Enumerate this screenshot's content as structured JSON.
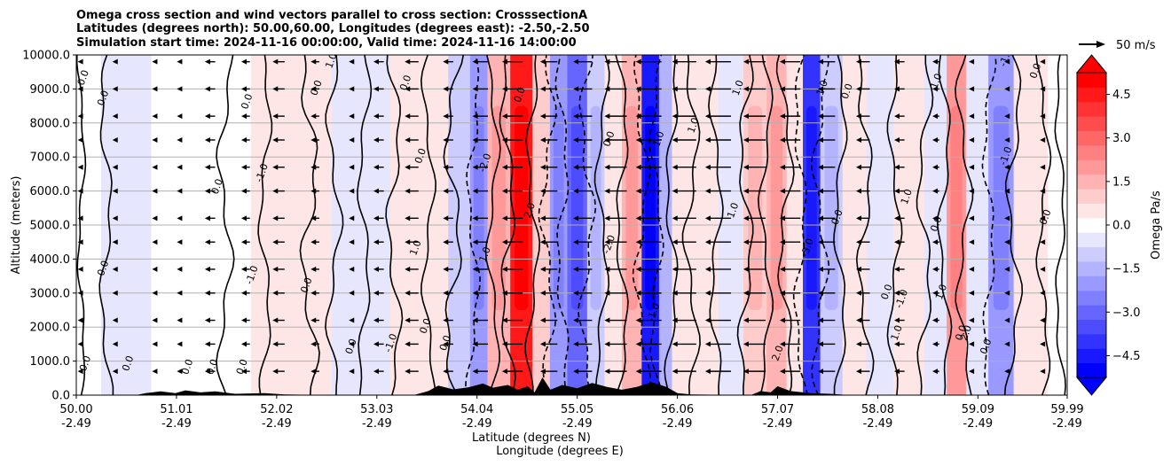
{
  "chart_data": {
    "type": "contour",
    "title_lines": [
      "Omega cross section and wind vectors parallel to cross section: CrosssectionA",
      "Latitudes (degrees north): 50.00,60.00, Longitudes (degrees east): -2.50,-2.50",
      "Simulation start time: 2024-11-16 00:00:00, Valid time: 2024-11-16 14:00:00"
    ],
    "xlabel_lines": [
      "Latitude (degrees N)",
      "Longitude (degrees E)"
    ],
    "ylabel": "Altitude (meters)",
    "x_range": [
      50.0,
      59.99
    ],
    "y_range": [
      0,
      10000
    ],
    "x_ticks": [
      {
        "lat": "50.00",
        "lon": "-2.49",
        "value": 50.0
      },
      {
        "lat": "51.01",
        "lon": "-2.49",
        "value": 51.01
      },
      {
        "lat": "52.02",
        "lon": "-2.49",
        "value": 52.02
      },
      {
        "lat": "53.03",
        "lon": "-2.49",
        "value": 53.03
      },
      {
        "lat": "54.04",
        "lon": "-2.49",
        "value": 54.04
      },
      {
        "lat": "55.05",
        "lon": "-2.49",
        "value": 55.05
      },
      {
        "lat": "56.06",
        "lon": "-2.49",
        "value": 56.06
      },
      {
        "lat": "57.07",
        "lon": "-2.49",
        "value": 57.07
      },
      {
        "lat": "58.08",
        "lon": "-2.49",
        "value": 58.08
      },
      {
        "lat": "59.09",
        "lon": "-2.49",
        "value": 59.09
      },
      {
        "lat": "59.99",
        "lon": "-2.49",
        "value": 59.99
      }
    ],
    "y_ticks": [
      {
        "label": "0.0",
        "value": 0
      },
      {
        "label": "1000.0",
        "value": 1000
      },
      {
        "label": "2000.0",
        "value": 2000
      },
      {
        "label": "3000.0",
        "value": 3000
      },
      {
        "label": "4000.0",
        "value": 4000
      },
      {
        "label": "5000.0",
        "value": 5000
      },
      {
        "label": "6000.0",
        "value": 6000
      },
      {
        "label": "7000.0",
        "value": 7000
      },
      {
        "label": "8000.0",
        "value": 8000
      },
      {
        "label": "9000.0",
        "value": 9000
      },
      {
        "label": "10000.0",
        "value": 10000
      }
    ],
    "grid_horizontal": true,
    "colorbar": {
      "label": "Omega Pa/s",
      "range": [
        -5.25,
        5.25
      ],
      "extend": "both",
      "ticks": [
        {
          "label": "4.5",
          "value": 4.5
        },
        {
          "label": "3.0",
          "value": 3.0
        },
        {
          "label": "1.5",
          "value": 1.5
        },
        {
          "label": "0.0",
          "value": 0.0
        },
        {
          "label": "−1.5",
          "value": -1.5
        },
        {
          "label": "−3.0",
          "value": -3.0
        },
        {
          "label": "−4.5",
          "value": -4.5
        }
      ],
      "max_color": "#ff0000",
      "min_color": "#0000ff"
    },
    "quiver_key": {
      "label": "50 m/s",
      "speed": 50
    },
    "omega_bands": [
      {
        "lat": 50.0,
        "omega": -0.2
      },
      {
        "lat": 50.5,
        "omega": -0.4
      },
      {
        "lat": 51.01,
        "omega": -0.2
      },
      {
        "lat": 51.5,
        "omega": 0.2
      },
      {
        "lat": 52.02,
        "omega": 0.5
      },
      {
        "lat": 52.4,
        "omega": 0.4
      },
      {
        "lat": 52.75,
        "omega": -0.6
      },
      {
        "lat": 53.03,
        "omega": -0.3
      },
      {
        "lat": 53.3,
        "omega": 0.3
      },
      {
        "lat": 53.6,
        "omega": 0.5
      },
      {
        "lat": 53.9,
        "omega": -1.0
      },
      {
        "lat": 54.04,
        "omega": -2.0
      },
      {
        "lat": 54.25,
        "omega": 1.6
      },
      {
        "lat": 54.5,
        "omega": 4.5
      },
      {
        "lat": 54.7,
        "omega": 1.0
      },
      {
        "lat": 54.85,
        "omega": -2.2
      },
      {
        "lat": 55.05,
        "omega": -3.0
      },
      {
        "lat": 55.25,
        "omega": -1.2
      },
      {
        "lat": 55.4,
        "omega": 0.6
      },
      {
        "lat": 55.6,
        "omega": 1.6
      },
      {
        "lat": 55.8,
        "omega": -4.8
      },
      {
        "lat": 55.95,
        "omega": -1.5
      },
      {
        "lat": 56.06,
        "omega": 0.4
      },
      {
        "lat": 56.35,
        "omega": 0.6
      },
      {
        "lat": 56.6,
        "omega": -0.4
      },
      {
        "lat": 56.85,
        "omega": 1.2
      },
      {
        "lat": 57.07,
        "omega": 1.8
      },
      {
        "lat": 57.25,
        "omega": 0.3
      },
      {
        "lat": 57.4,
        "omega": -4.0
      },
      {
        "lat": 57.6,
        "omega": -1.2
      },
      {
        "lat": 57.85,
        "omega": 0.5
      },
      {
        "lat": 58.08,
        "omega": -0.3
      },
      {
        "lat": 58.4,
        "omega": 0.4
      },
      {
        "lat": 58.7,
        "omega": -0.4
      },
      {
        "lat": 58.85,
        "omega": 2.0
      },
      {
        "lat": 59.09,
        "omega": -0.6
      },
      {
        "lat": 59.3,
        "omega": -2.2
      },
      {
        "lat": 59.6,
        "omega": 0.6
      },
      {
        "lat": 59.99,
        "omega": -0.2
      }
    ],
    "contour_lines": [
      {
        "lat": 50.05,
        "amp": 0.03,
        "dashed": false
      },
      {
        "lat": 50.3,
        "amp": 0.05,
        "dashed": false
      },
      {
        "lat": 51.5,
        "amp": 0.06,
        "dashed": false
      },
      {
        "lat": 51.9,
        "amp": 0.05,
        "dashed": false
      },
      {
        "lat": 52.35,
        "amp": 0.07,
        "dashed": false
      },
      {
        "lat": 52.6,
        "amp": 0.06,
        "dashed": false
      },
      {
        "lat": 52.9,
        "amp": 0.05,
        "dashed": false
      },
      {
        "lat": 53.2,
        "amp": 0.06,
        "dashed": false
      },
      {
        "lat": 53.55,
        "amp": 0.05,
        "dashed": false
      },
      {
        "lat": 53.8,
        "amp": 0.07,
        "dashed": false
      },
      {
        "lat": 54.0,
        "amp": 0.05,
        "dashed": true
      },
      {
        "lat": 54.2,
        "amp": 0.05,
        "dashed": false
      },
      {
        "lat": 54.35,
        "amp": 0.06,
        "dashed": false
      },
      {
        "lat": 54.6,
        "amp": 0.05,
        "dashed": false
      },
      {
        "lat": 54.75,
        "amp": 0.06,
        "dashed": true
      },
      {
        "lat": 54.9,
        "amp": 0.05,
        "dashed": true
      },
      {
        "lat": 55.15,
        "amp": 0.06,
        "dashed": true
      },
      {
        "lat": 55.3,
        "amp": 0.05,
        "dashed": false
      },
      {
        "lat": 55.5,
        "amp": 0.05,
        "dashed": false
      },
      {
        "lat": 55.7,
        "amp": 0.06,
        "dashed": true
      },
      {
        "lat": 55.85,
        "amp": 0.05,
        "dashed": true
      },
      {
        "lat": 56.0,
        "amp": 0.05,
        "dashed": false
      },
      {
        "lat": 56.2,
        "amp": 0.06,
        "dashed": false
      },
      {
        "lat": 56.45,
        "amp": 0.05,
        "dashed": false
      },
      {
        "lat": 56.75,
        "amp": 0.06,
        "dashed": false
      },
      {
        "lat": 56.95,
        "amp": 0.05,
        "dashed": false
      },
      {
        "lat": 57.15,
        "amp": 0.06,
        "dashed": false
      },
      {
        "lat": 57.3,
        "amp": 0.05,
        "dashed": true
      },
      {
        "lat": 57.5,
        "amp": 0.06,
        "dashed": true
      },
      {
        "lat": 57.7,
        "amp": 0.05,
        "dashed": false
      },
      {
        "lat": 57.95,
        "amp": 0.06,
        "dashed": false
      },
      {
        "lat": 58.25,
        "amp": 0.05,
        "dashed": false
      },
      {
        "lat": 58.55,
        "amp": 0.06,
        "dashed": false
      },
      {
        "lat": 58.75,
        "amp": 0.05,
        "dashed": false
      },
      {
        "lat": 58.95,
        "amp": 0.06,
        "dashed": false
      },
      {
        "lat": 59.2,
        "amp": 0.05,
        "dashed": true
      },
      {
        "lat": 59.45,
        "amp": 0.06,
        "dashed": false
      },
      {
        "lat": 59.75,
        "amp": 0.05,
        "dashed": false
      },
      {
        "lat": 59.92,
        "amp": 0.04,
        "dashed": false
      }
    ],
    "contour_labels": [
      {
        "text": "0.0",
        "lat": 50.1,
        "alt": 9300
      },
      {
        "text": "0.0",
        "lat": 50.3,
        "alt": 8700
      },
      {
        "text": "0.0",
        "lat": 50.3,
        "alt": 3700
      },
      {
        "text": "0.0",
        "lat": 50.12,
        "alt": 900
      },
      {
        "text": "0.0",
        "lat": 50.55,
        "alt": 900
      },
      {
        "text": "0.0",
        "lat": 51.15,
        "alt": 800
      },
      {
        "text": "0.0",
        "lat": 51.4,
        "alt": 800
      },
      {
        "text": "0.0",
        "lat": 51.7,
        "alt": 800
      },
      {
        "text": "0.0",
        "lat": 51.75,
        "alt": 8600
      },
      {
        "text": "0.0",
        "lat": 52.45,
        "alt": 9000
      },
      {
        "text": "0.0",
        "lat": 53.35,
        "alt": 9150
      },
      {
        "text": "0.0",
        "lat": 51.45,
        "alt": 6100
      },
      {
        "text": "0.0",
        "lat": 52.35,
        "alt": 3200
      },
      {
        "text": "0.0",
        "lat": 52.8,
        "alt": 1400
      },
      {
        "text": "0.0",
        "lat": 53.5,
        "alt": 7000
      },
      {
        "text": "0.0",
        "lat": 53.55,
        "alt": 2000
      },
      {
        "text": "0.0",
        "lat": 53.75,
        "alt": 1500
      },
      {
        "text": "0.0",
        "lat": 54.5,
        "alt": 8800
      },
      {
        "text": "0.0",
        "lat": 55.4,
        "alt": 7500
      },
      {
        "text": "0.0",
        "lat": 57.8,
        "alt": 8900
      },
      {
        "text": "0.0",
        "lat": 57.7,
        "alt": 5200
      },
      {
        "text": "0.0",
        "lat": 58.2,
        "alt": 3000
      },
      {
        "text": "0.0",
        "lat": 58.7,
        "alt": 5000
      },
      {
        "text": "0.0",
        "lat": 58.95,
        "alt": 1800
      },
      {
        "text": "0.0",
        "lat": 59.2,
        "alt": 1400
      },
      {
        "text": "0.0",
        "lat": 59.7,
        "alt": 9500
      },
      {
        "text": "0.0",
        "lat": 59.8,
        "alt": 5200
      },
      {
        "text": "-1.0",
        "lat": 51.9,
        "alt": 6500
      },
      {
        "text": "-1.0",
        "lat": 51.8,
        "alt": 3500
      },
      {
        "text": "-1.0",
        "lat": 53.2,
        "alt": 1500
      },
      {
        "text": "-1.0",
        "lat": 55.85,
        "alt": 2400
      },
      {
        "text": "-1.0",
        "lat": 58.35,
        "alt": 2800
      },
      {
        "text": "-1.0",
        "lat": 59.4,
        "alt": 7000
      },
      {
        "text": "-2.0",
        "lat": 54.15,
        "alt": 6800
      },
      {
        "text": "-2.0",
        "lat": 55.4,
        "alt": 4400
      },
      {
        "text": "-3.0",
        "lat": 57.4,
        "alt": 4300
      },
      {
        "text": "1.0",
        "lat": 52.6,
        "alt": 9800
      },
      {
        "text": "1.0",
        "lat": 53.45,
        "alt": 4300
      },
      {
        "text": "1.0",
        "lat": 54.15,
        "alt": 4100
      },
      {
        "text": "1.0",
        "lat": 55.9,
        "alt": 7500
      },
      {
        "text": "1.0",
        "lat": 56.25,
        "alt": 7900
      },
      {
        "text": "1.0",
        "lat": 56.65,
        "alt": 5400
      },
      {
        "text": "1.0",
        "lat": 56.7,
        "alt": 9000
      },
      {
        "text": "1.0",
        "lat": 57.55,
        "alt": 9000
      },
      {
        "text": "1.0",
        "lat": 58.4,
        "alt": 5800
      },
      {
        "text": "1.0",
        "lat": 58.7,
        "alt": 9200
      },
      {
        "text": "1.0",
        "lat": 58.75,
        "alt": 3000
      },
      {
        "text": "1.0",
        "lat": 58.3,
        "alt": 1800
      },
      {
        "text": "2.0",
        "lat": 54.6,
        "alt": 5400
      },
      {
        "text": "2.0",
        "lat": 59.0,
        "alt": 1800
      },
      {
        "text": "2.0",
        "lat": 57.1,
        "alt": 1200
      },
      {
        "text": "-1.0",
        "lat": 59.4,
        "alt": 9900
      }
    ],
    "wind_rows": [
      9800,
      9000,
      8200,
      7500,
      6700,
      6000,
      5200,
      4500,
      3700,
      3000,
      2200,
      1500,
      700
    ],
    "wind_columns": [
      {
        "lat": 50.05,
        "u": -3
      },
      {
        "lat": 50.4,
        "u": -2
      },
      {
        "lat": 50.8,
        "u": -3
      },
      {
        "lat": 51.05,
        "u": -4
      },
      {
        "lat": 51.4,
        "u": -12
      },
      {
        "lat": 51.75,
        "u": -10
      },
      {
        "lat": 52.1,
        "u": -14
      },
      {
        "lat": 52.45,
        "u": -10
      },
      {
        "lat": 52.8,
        "u": -6
      },
      {
        "lat": 53.1,
        "u": -12
      },
      {
        "lat": 53.45,
        "u": -16
      },
      {
        "lat": 53.8,
        "u": -12
      },
      {
        "lat": 54.15,
        "u": -18
      },
      {
        "lat": 54.5,
        "u": -24
      },
      {
        "lat": 54.85,
        "u": -20
      },
      {
        "lat": 55.2,
        "u": -22
      },
      {
        "lat": 55.55,
        "u": -26
      },
      {
        "lat": 55.9,
        "u": -30
      },
      {
        "lat": 56.25,
        "u": -28
      },
      {
        "lat": 56.6,
        "u": -30
      },
      {
        "lat": 56.95,
        "u": -26
      },
      {
        "lat": 57.3,
        "u": -24
      },
      {
        "lat": 57.65,
        "u": -20
      },
      {
        "lat": 58.0,
        "u": -16
      },
      {
        "lat": 58.35,
        "u": -12
      },
      {
        "lat": 58.7,
        "u": -8
      },
      {
        "lat": 59.05,
        "u": -6
      },
      {
        "lat": 59.4,
        "u": -5
      },
      {
        "lat": 59.75,
        "u": -4
      }
    ],
    "terrain": [
      {
        "lat": 50.0,
        "alt": 0
      },
      {
        "lat": 50.6,
        "alt": 0
      },
      {
        "lat": 50.7,
        "alt": 60
      },
      {
        "lat": 50.85,
        "alt": 110
      },
      {
        "lat": 51.0,
        "alt": 60
      },
      {
        "lat": 51.1,
        "alt": 140
      },
      {
        "lat": 51.25,
        "alt": 80
      },
      {
        "lat": 51.4,
        "alt": 110
      },
      {
        "lat": 51.6,
        "alt": 40
      },
      {
        "lat": 51.9,
        "alt": 60
      },
      {
        "lat": 52.1,
        "alt": 20
      },
      {
        "lat": 52.6,
        "alt": 0
      },
      {
        "lat": 53.4,
        "alt": 0
      },
      {
        "lat": 53.55,
        "alt": 120
      },
      {
        "lat": 53.65,
        "alt": 280
      },
      {
        "lat": 53.8,
        "alt": 170
      },
      {
        "lat": 53.95,
        "alt": 230
      },
      {
        "lat": 54.1,
        "alt": 340
      },
      {
        "lat": 54.2,
        "alt": 220
      },
      {
        "lat": 54.35,
        "alt": 300
      },
      {
        "lat": 54.45,
        "alt": 160
      },
      {
        "lat": 54.55,
        "alt": 260
      },
      {
        "lat": 54.62,
        "alt": 80
      },
      {
        "lat": 54.7,
        "alt": 520
      },
      {
        "lat": 54.78,
        "alt": 160
      },
      {
        "lat": 54.9,
        "alt": 300
      },
      {
        "lat": 55.05,
        "alt": 200
      },
      {
        "lat": 55.2,
        "alt": 360
      },
      {
        "lat": 55.35,
        "alt": 240
      },
      {
        "lat": 55.5,
        "alt": 160
      },
      {
        "lat": 55.65,
        "alt": 240
      },
      {
        "lat": 55.8,
        "alt": 380
      },
      {
        "lat": 55.95,
        "alt": 240
      },
      {
        "lat": 56.06,
        "alt": 60
      },
      {
        "lat": 56.2,
        "alt": 20
      },
      {
        "lat": 56.8,
        "alt": 0
      },
      {
        "lat": 56.9,
        "alt": 120
      },
      {
        "lat": 57.0,
        "alt": 80
      },
      {
        "lat": 57.07,
        "alt": 260
      },
      {
        "lat": 57.2,
        "alt": 120
      },
      {
        "lat": 57.4,
        "alt": 60
      },
      {
        "lat": 57.6,
        "alt": 40
      },
      {
        "lat": 57.8,
        "alt": 0
      },
      {
        "lat": 59.99,
        "alt": 0
      }
    ]
  }
}
